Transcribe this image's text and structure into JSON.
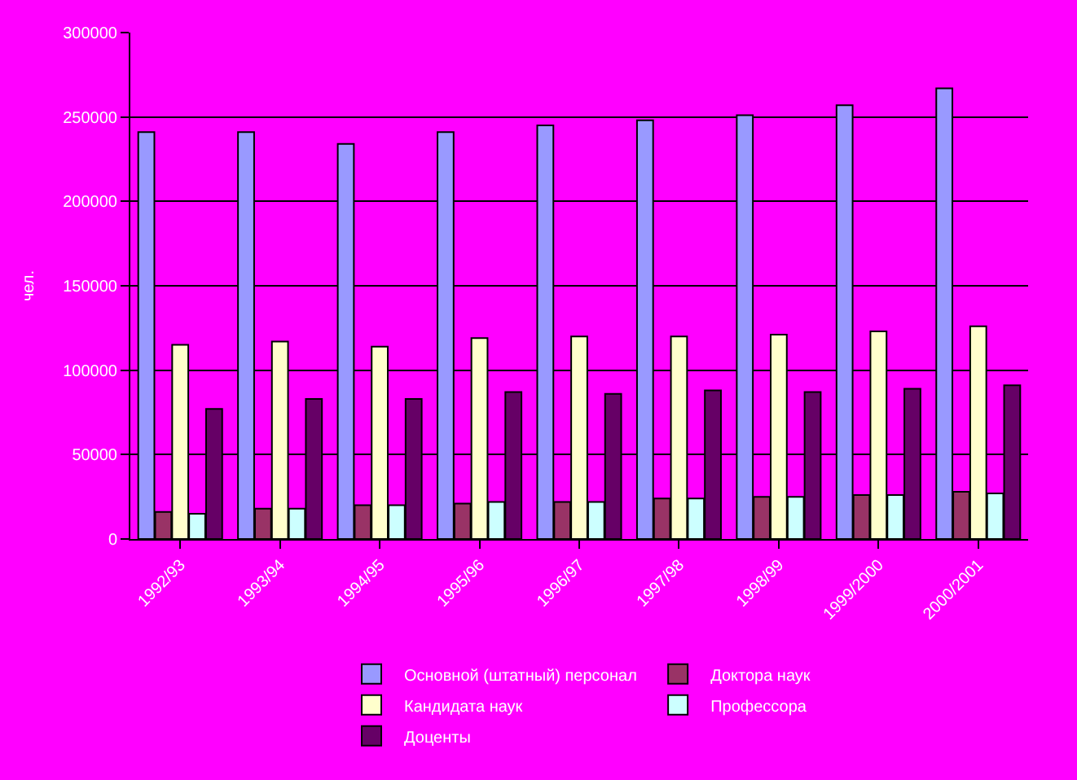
{
  "chart_data": {
    "type": "bar",
    "ylabel": "чел.",
    "categories": [
      "1992/93",
      "1993/94",
      "1994/95",
      "1995/96",
      "1996/97",
      "1997/98",
      "1998/99",
      "1999/2000",
      "2000/2001"
    ],
    "series": [
      {
        "name": "Основной (штатный) персонал",
        "color": "#9999ff",
        "values": [
          241000,
          241000,
          234000,
          241000,
          245000,
          248000,
          251000,
          257000,
          267000
        ]
      },
      {
        "name": "Доктора наук",
        "color": "#993366",
        "values": [
          16000,
          18000,
          20000,
          21000,
          22000,
          24000,
          25000,
          26000,
          28000
        ]
      },
      {
        "name": "Кандидата наук",
        "color": "#ffffcc",
        "values": [
          115000,
          117000,
          114000,
          119000,
          120000,
          120000,
          121000,
          123000,
          126000
        ]
      },
      {
        "name": "Профессора",
        "color": "#ccffff",
        "values": [
          15000,
          18000,
          20000,
          22000,
          22000,
          24000,
          25000,
          26000,
          27000
        ]
      },
      {
        "name": "Доценты",
        "color": "#660066",
        "values": [
          77000,
          83000,
          83000,
          87000,
          86000,
          88000,
          87000,
          89000,
          91000
        ]
      }
    ],
    "ylim": [
      0,
      300000
    ],
    "yticks": [
      0,
      50000,
      100000,
      150000,
      200000,
      250000,
      300000
    ],
    "grid": "y",
    "legend": "bottom"
  }
}
